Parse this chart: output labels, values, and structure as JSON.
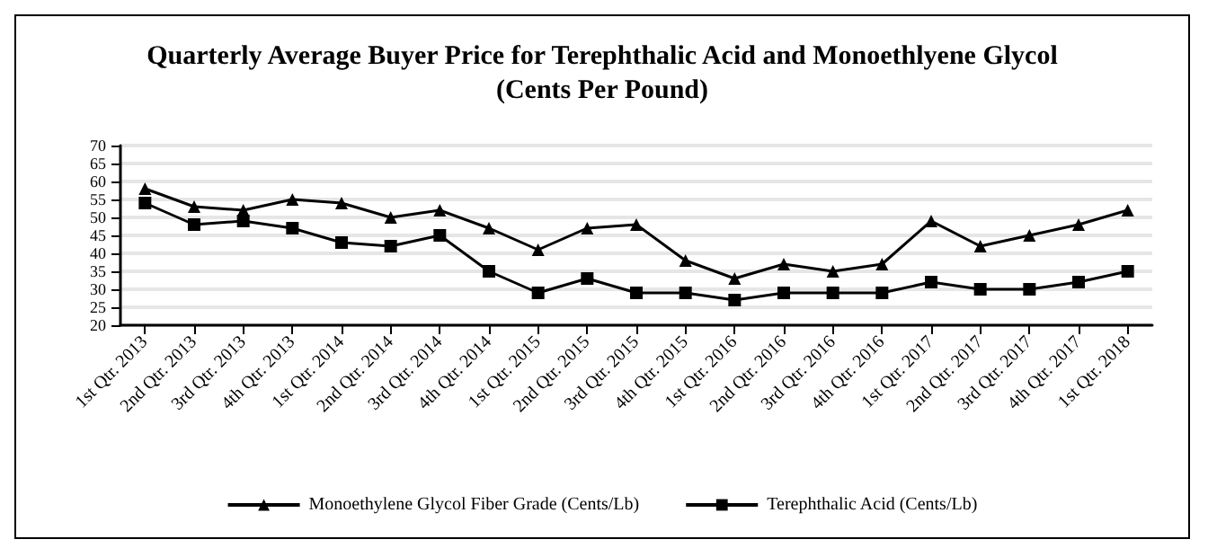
{
  "chart_data": {
    "type": "line",
    "title": "Quarterly Average Buyer Price for Terephthalic Acid and Monoethlyene Glycol\n(Cents Per Pound)",
    "categories": [
      "1st Qtr. 2013",
      "2nd Qtr. 2013",
      "3rd Qtr. 2013",
      "4th Qtr. 2013",
      "1st Qtr. 2014",
      "2nd Qtr. 2014",
      "3rd Qtr. 2014",
      "4th Qtr. 2014",
      "1st Qtr. 2015",
      "2nd Qtr. 2015",
      "3rd Qtr. 2015",
      "4th Qtr. 2015",
      "1st Qtr. 2016",
      "2nd Qtr. 2016",
      "3rd Qtr. 2016",
      "4th Qtr. 2016",
      "1st Qtr. 2017",
      "2nd Qtr. 2017",
      "3rd Qtr. 2017",
      "4th Qtr. 2017",
      "1st Qtr. 2018"
    ],
    "series": [
      {
        "name": "Monoethylene Glycol Fiber Grade (Cents/Lb)",
        "color": "#000000",
        "marker": "triangle",
        "values": [
          58,
          53,
          52,
          55,
          54,
          50,
          52,
          47,
          41,
          47,
          48,
          38,
          33,
          37,
          35,
          37,
          49,
          42,
          45,
          48,
          52
        ]
      },
      {
        "name": "Terephthalic Acid (Cents/Lb)",
        "color": "#000000",
        "marker": "square",
        "values": [
          54,
          48,
          49,
          47,
          43,
          42,
          45,
          35,
          29,
          33,
          29,
          29,
          27,
          29,
          29,
          29,
          32,
          30,
          30,
          32,
          35
        ]
      }
    ],
    "ylim": [
      20,
      70
    ],
    "yticks": [
      20,
      25,
      30,
      35,
      40,
      45,
      50,
      55,
      60,
      65,
      70
    ],
    "grid": "y",
    "legend": "bottom",
    "line_style": "solid"
  }
}
